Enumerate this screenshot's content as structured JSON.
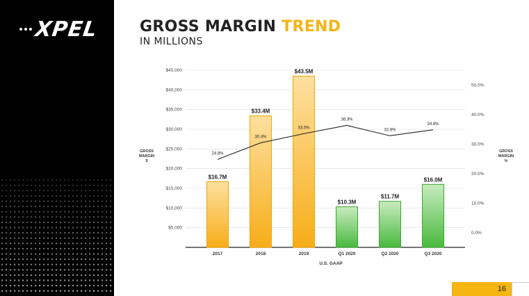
{
  "brand": {
    "logo_text": "XPEL"
  },
  "slide": {
    "title_main": "GROSS MARGIN",
    "title_accent": "TREND",
    "subtitle": "IN MILLIONS",
    "page_number": "16"
  },
  "colors": {
    "accent": "#f5b512",
    "orange_bar": "#f7b11f",
    "green_bar": "#4fbf45",
    "dark": "#000000"
  },
  "chart_data": {
    "type": "bar",
    "categories": [
      "2017",
      "2018",
      "2019",
      "Q1 2020",
      "Q2 2020",
      "Q3 2020"
    ],
    "series": [
      {
        "values": [
          16700,
          33400,
          43500,
          10300,
          11700,
          16000
        ]
      },
      {
        "values": [
          24.8,
          30.4,
          33.5,
          36.3,
          32.8,
          34.8
        ]
      }
    ],
    "bar_labels": [
      "$16.7M",
      "$33.4M",
      "$43.5M",
      "$10.3M",
      "$11.7M",
      "$16.0M"
    ],
    "line_labels": [
      "24.8%",
      "30.4%",
      "33.5%",
      "36.3%",
      "32.8%",
      "34.8%"
    ],
    "bar_colors": [
      "orange",
      "orange",
      "orange",
      "green",
      "green",
      "green"
    ],
    "y_left": {
      "ylim": [
        0,
        45000
      ],
      "ticks": [
        "$5,000",
        "$10,000",
        "$15,000",
        "$20,000",
        "$25,000",
        "$30,000",
        "$35,000",
        "$40,000",
        "$45,000"
      ],
      "tick_values": [
        5000,
        10000,
        15000,
        20000,
        25000,
        30000,
        35000,
        40000,
        45000
      ],
      "label_lines": [
        "GROSS",
        "MARGIN",
        "$"
      ]
    },
    "y_right": {
      "ylim": [
        -5,
        55
      ],
      "ticks": [
        "0.0%",
        "10.0%",
        "20.0%",
        "30.0%",
        "40.0%",
        "50.0%"
      ],
      "tick_values": [
        0,
        10,
        20,
        30,
        40,
        50
      ],
      "label_lines": [
        "GROSS",
        "MARGIN",
        "%"
      ]
    },
    "xlabel": "U.S. GAAP",
    "grid": true
  }
}
